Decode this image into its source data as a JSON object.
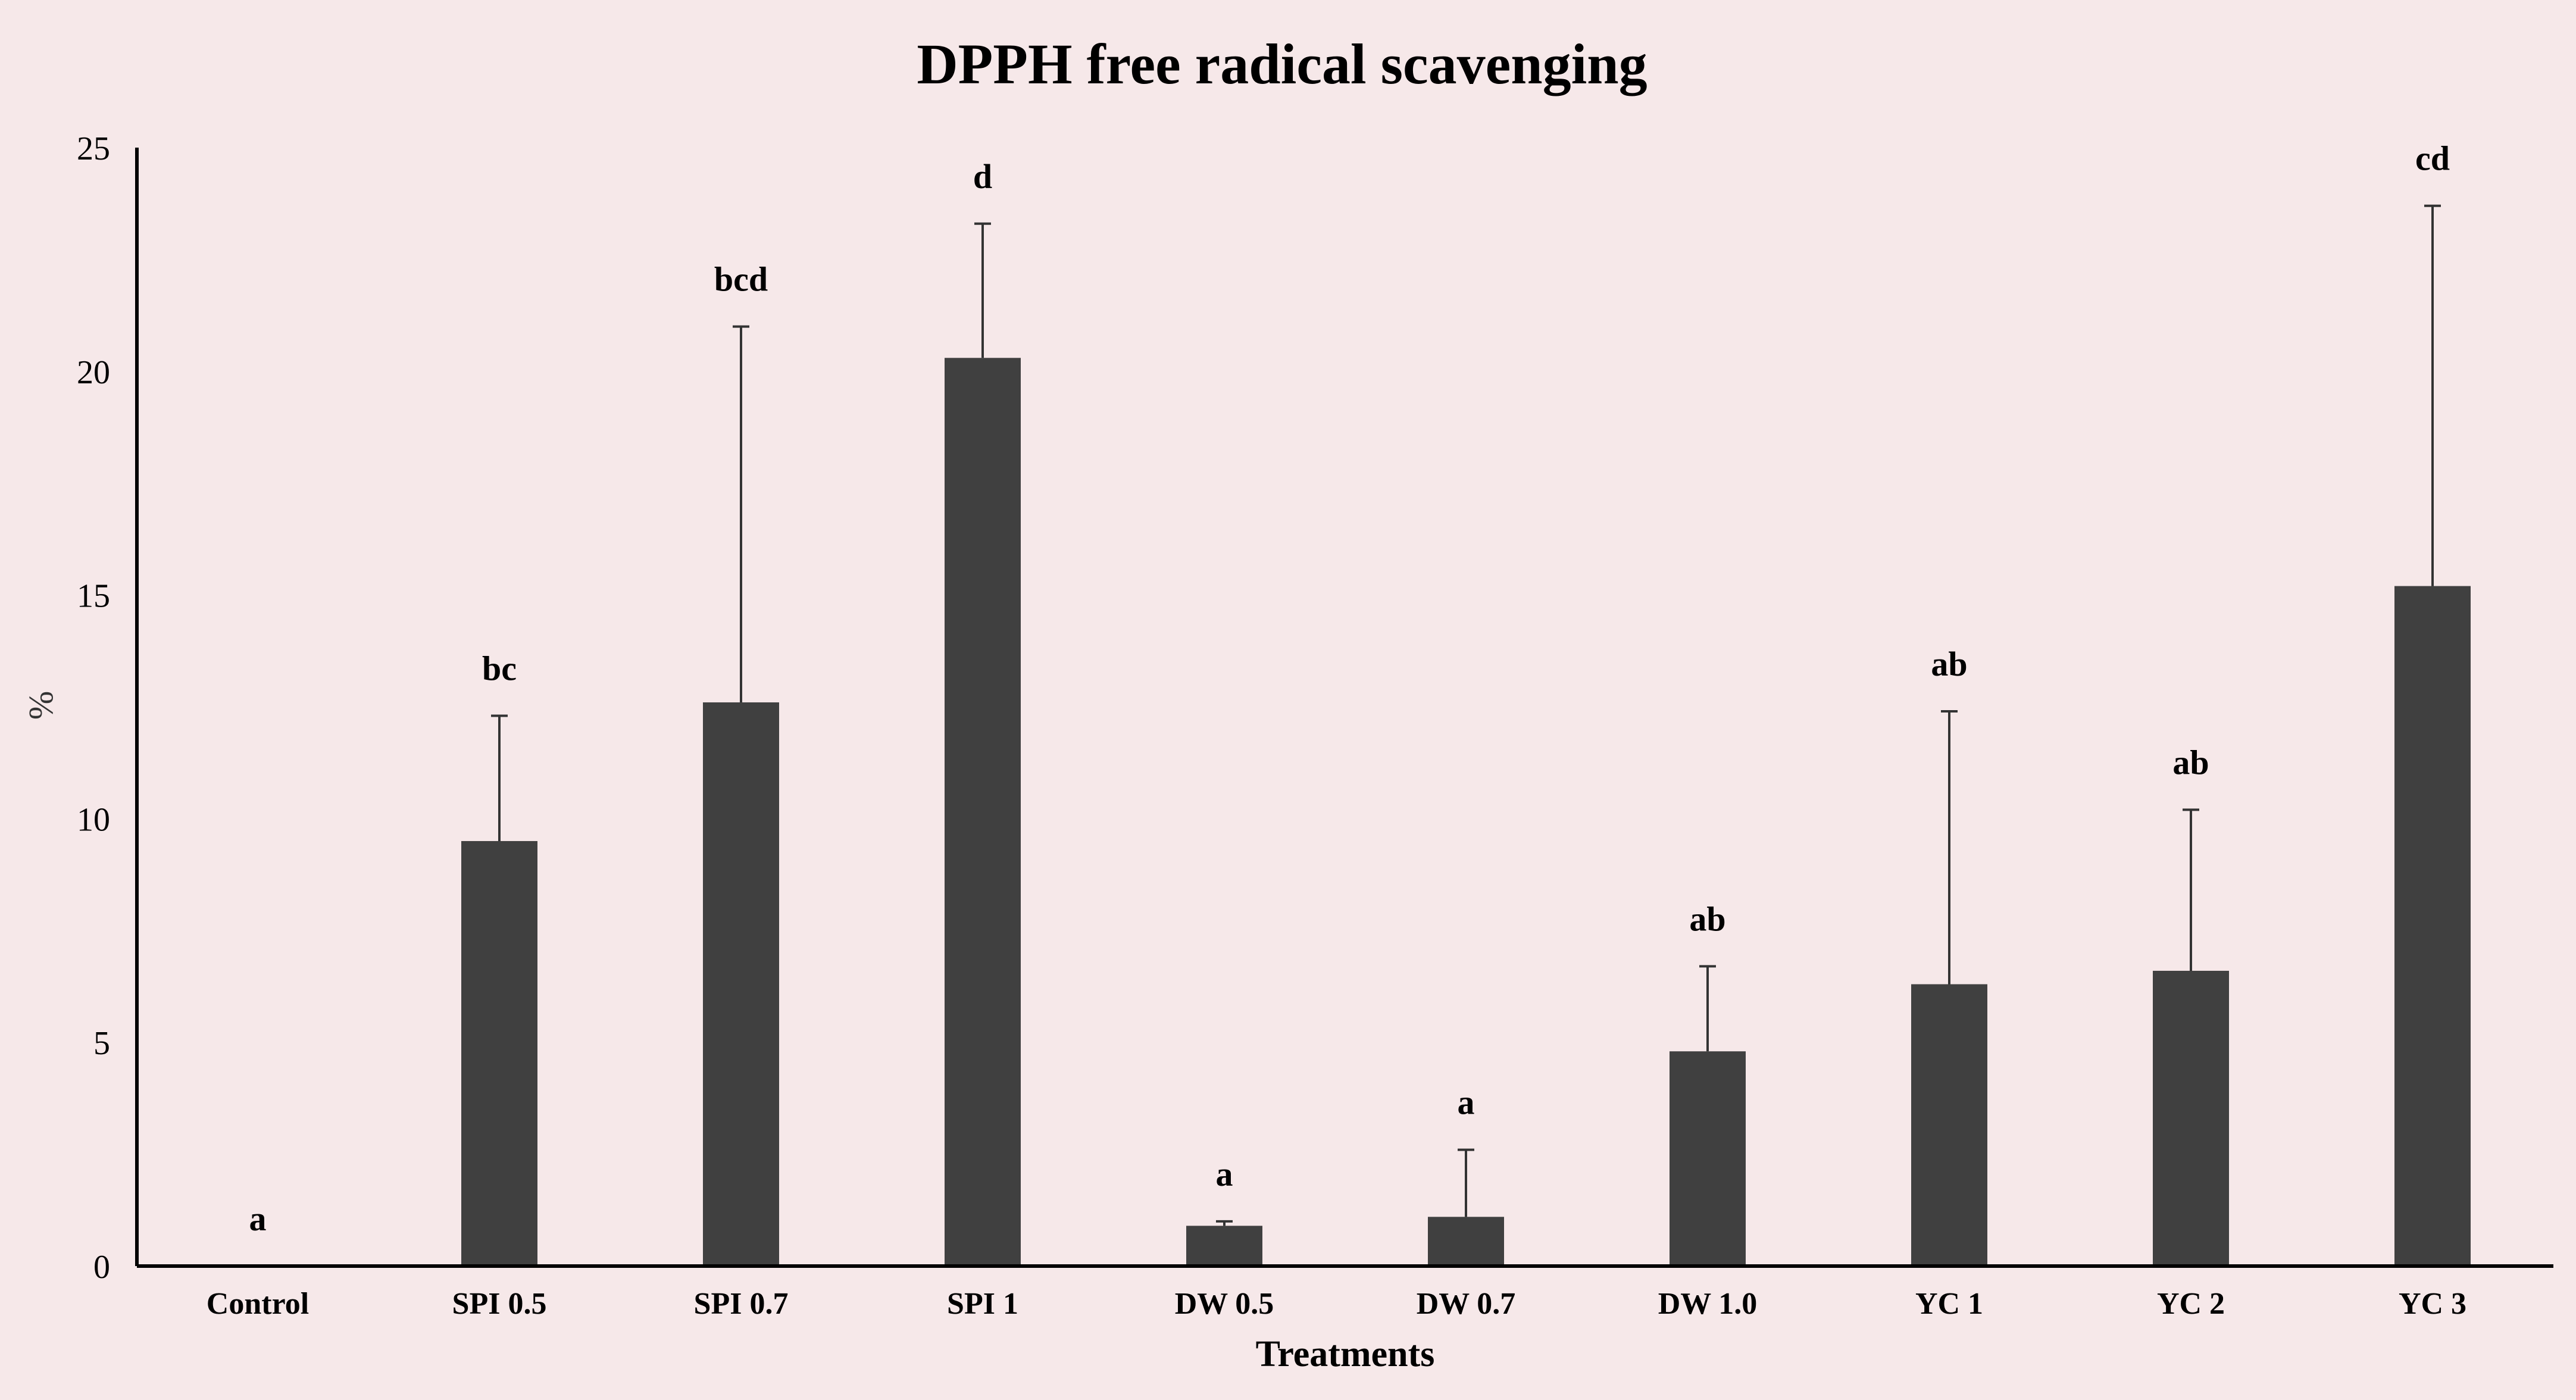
{
  "chart_data": {
    "type": "bar",
    "title": "DPPH free radical scavenging",
    "xlabel": "Treatments",
    "ylabel": "%",
    "ylim": [
      0,
      25
    ],
    "yticks": [
      "0",
      "5",
      "10",
      "15",
      "20",
      "25"
    ],
    "grid": false,
    "legend": "none",
    "categories": [
      "Control",
      "SPI 0.5",
      "SPI 0.7",
      "SPI 1",
      "DW 0.5",
      "DW 0.7",
      "DW 1.0",
      "YC 1",
      "YC 2",
      "YC 3"
    ],
    "values": [
      0,
      9.5,
      12.6,
      20.3,
      0.9,
      1.1,
      4.8,
      6.3,
      6.6,
      15.2
    ],
    "error_upper": [
      0,
      12.3,
      21.0,
      23.3,
      1.0,
      2.6,
      6.7,
      12.4,
      10.2,
      23.7
    ],
    "significance_letters": [
      "a",
      "bc",
      "bcd",
      "d",
      "a",
      "a",
      "ab",
      "ab",
      "ab",
      "cd"
    ],
    "colors": {
      "bar": "#404040",
      "axis": "#000000",
      "error_bar": "#333333",
      "background": "#f6e8e9"
    }
  }
}
